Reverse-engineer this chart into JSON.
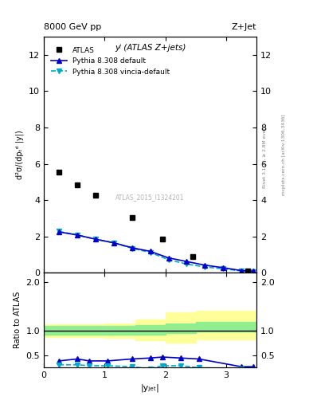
{
  "title_left": "8000 GeV pp",
  "title_right": "Z+Jet",
  "plot_label": "yʲ (ATLAS Z+jets)",
  "watermark": "ATLAS_2015_I1324201",
  "right_label_top": "Rivet 3.1.10, ≥ 2.8M events",
  "right_label_bot": "mcplots.cern.ch [arXiv:1306.3436]",
  "ylabel_main": "d²σ/(dpₜᵈ |y|)",
  "ylabel_ratio": "Ratio to ATLAS",
  "xlabel": "|yⱼₑₜ|",
  "atlas_x": [
    0.25,
    0.55,
    0.85,
    1.45,
    1.95,
    2.45,
    3.35
  ],
  "atlas_y": [
    5.55,
    4.85,
    4.28,
    3.05,
    1.85,
    0.88,
    0.12
  ],
  "pythia_default_x": [
    0.25,
    0.55,
    0.85,
    1.15,
    1.45,
    1.75,
    2.05,
    2.35,
    2.65,
    2.95,
    3.25,
    3.45
  ],
  "pythia_default_y": [
    2.25,
    2.08,
    1.85,
    1.65,
    1.38,
    1.18,
    0.82,
    0.62,
    0.42,
    0.28,
    0.12,
    0.08
  ],
  "pythia_vincia_x": [
    0.25,
    0.55,
    0.85,
    1.15,
    1.45,
    1.75,
    2.05,
    2.35,
    2.65,
    2.95,
    3.25,
    3.45
  ],
  "pythia_vincia_y": [
    2.28,
    2.08,
    1.85,
    1.65,
    1.35,
    1.12,
    0.72,
    0.48,
    0.32,
    0.22,
    0.1,
    0.06
  ],
  "ratio_default_x": [
    0.25,
    0.55,
    0.75,
    1.05,
    1.45,
    1.75,
    1.95,
    2.25,
    2.55,
    3.25,
    3.45
  ],
  "ratio_default_y": [
    0.38,
    0.42,
    0.38,
    0.38,
    0.42,
    0.44,
    0.46,
    0.44,
    0.42,
    0.26,
    0.26
  ],
  "ratio_vincia_x": [
    0.25,
    0.55,
    0.75,
    1.05,
    1.45,
    1.75,
    1.95,
    2.25,
    2.55,
    3.25,
    3.45
  ],
  "ratio_vincia_y": [
    0.3,
    0.3,
    0.28,
    0.28,
    0.26,
    0.22,
    0.28,
    0.28,
    0.24,
    0.22,
    0.2
  ],
  "band_x": [
    0.0,
    0.5,
    1.0,
    1.5,
    2.0,
    2.5,
    3.5
  ],
  "band_green_lo": [
    0.92,
    0.92,
    0.92,
    0.92,
    0.95,
    0.98,
    0.98
  ],
  "band_green_hi": [
    1.1,
    1.1,
    1.1,
    1.12,
    1.15,
    1.18,
    1.18
  ],
  "band_yellow_lo": [
    0.88,
    0.88,
    0.85,
    0.8,
    0.75,
    0.82,
    0.82
  ],
  "band_yellow_hi": [
    1.14,
    1.14,
    1.16,
    1.24,
    1.38,
    1.42,
    1.42
  ],
  "ylim_main": [
    0,
    13
  ],
  "ylim_ratio": [
    0.25,
    2.2
  ],
  "xlim": [
    0,
    3.5
  ],
  "color_default": "#0000cc",
  "color_vincia": "#00aacc",
  "color_green": "#90ee90",
  "color_yellow": "#ffff99",
  "yticks_main": [
    0,
    2,
    4,
    6,
    8,
    10,
    12
  ],
  "yticks_ratio": [
    0.5,
    1,
    2
  ],
  "xticks": [
    0,
    1,
    2,
    3
  ]
}
